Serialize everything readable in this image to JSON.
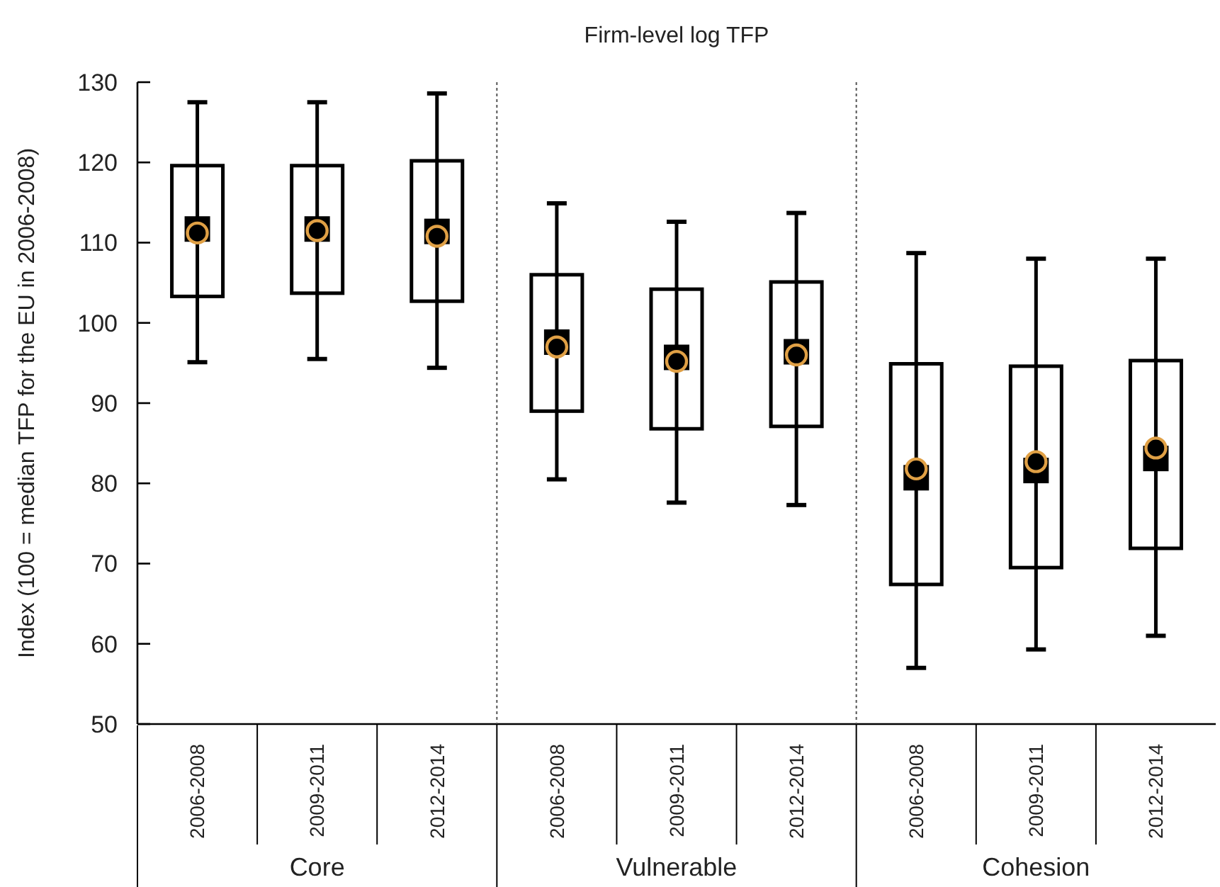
{
  "chart_data": {
    "type": "box",
    "title": "Firm-level log TFP",
    "ylabel": "Index (100 = median TFP for the EU in 2006-2008)",
    "categories": [
      "2006-2008",
      "2009-2011",
      "2012-2014",
      "2006-2008",
      "2009-2011",
      "2012-2014",
      "2006-2008",
      "2009-2011",
      "2012-2014"
    ],
    "boxes": [
      {
        "low": 95.1,
        "q1": 103.3,
        "median": 111.7,
        "q3": 119.6,
        "high": 127.5,
        "mean": 111.2
      },
      {
        "low": 95.5,
        "q1": 103.7,
        "median": 111.7,
        "q3": 119.6,
        "high": 127.5,
        "mean": 111.5
      },
      {
        "low": 94.4,
        "q1": 102.7,
        "median": 111.4,
        "q3": 120.2,
        "high": 128.6,
        "mean": 110.8
      },
      {
        "low": 80.5,
        "q1": 89.0,
        "median": 97.6,
        "q3": 106.0,
        "high": 114.9,
        "mean": 97.0
      },
      {
        "low": 77.6,
        "q1": 86.8,
        "median": 95.7,
        "q3": 104.2,
        "high": 112.6,
        "mean": 95.2
      },
      {
        "low": 77.3,
        "q1": 87.1,
        "median": 96.4,
        "q3": 105.1,
        "high": 113.7,
        "mean": 96.0
      },
      {
        "low": 57.0,
        "q1": 67.4,
        "median": 80.7,
        "q3": 94.9,
        "high": 108.7,
        "mean": 81.8
      },
      {
        "low": 59.3,
        "q1": 69.5,
        "median": 81.6,
        "q3": 94.6,
        "high": 108.0,
        "mean": 82.7
      },
      {
        "low": 61.0,
        "q1": 71.9,
        "median": 83.1,
        "q3": 95.3,
        "high": 108.0,
        "mean": 84.4
      }
    ],
    "ylim": [
      50,
      130
    ],
    "yticks": [
      50,
      60,
      70,
      80,
      90,
      100,
      110,
      120,
      130
    ],
    "annotations": [
      "Core",
      "Vulnerable",
      "Cohesion"
    ]
  }
}
